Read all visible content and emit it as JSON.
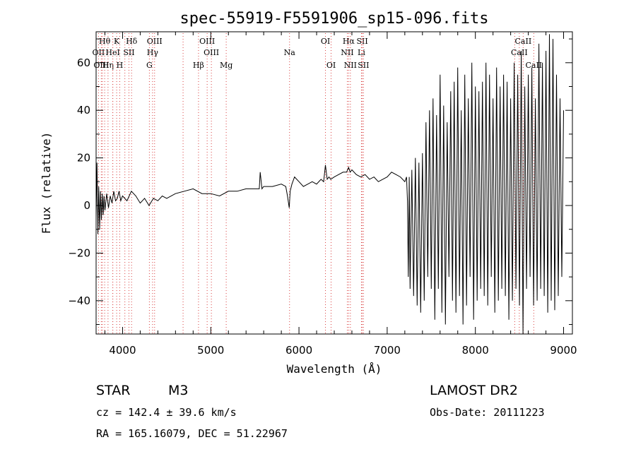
{
  "chart_data": {
    "type": "line",
    "title": "spec-55919-F5591906_sp15-096.fits",
    "xlabel": "Wavelength (Å)",
    "ylabel": "Flux (relative)",
    "xlim": [
      3700,
      9100
    ],
    "ylim": [
      -54,
      73
    ],
    "xticks": [
      4000,
      5000,
      6000,
      7000,
      8000,
      9000
    ],
    "yticks": [
      -40,
      -20,
      0,
      20,
      40,
      60
    ],
    "grid": false,
    "series": [
      {
        "x": [
          3700,
          3710,
          3720,
          3730,
          3740,
          3750,
          3760,
          3770,
          3780,
          3790,
          3800,
          3820,
          3840,
          3860,
          3880,
          3900,
          3920,
          3940,
          3960,
          3980,
          4000,
          4050,
          4100,
          4150,
          4200,
          4250,
          4300,
          4350,
          4400,
          4450,
          4500,
          4600,
          4700,
          4800,
          4900,
          5000,
          5100,
          5200,
          5300,
          5400,
          5500,
          5550,
          5560,
          5580,
          5600,
          5700,
          5800,
          5850,
          5870,
          5890,
          5900,
          5920,
          5950,
          6000,
          6050,
          6100,
          6150,
          6200,
          6250,
          6280,
          6300,
          6320,
          6340,
          6360,
          6400,
          6450,
          6500,
          6540,
          6563,
          6580,
          6600,
          6650,
          6700,
          6750,
          6800,
          6850,
          6900,
          6950,
          7000,
          7050,
          7100,
          7150,
          7200,
          7220,
          7230,
          7240,
          7250,
          7260,
          7280,
          7300,
          7320,
          7340,
          7360,
          7380,
          7400,
          7420,
          7440,
          7460,
          7480,
          7500,
          7520,
          7540,
          7560,
          7580,
          7600,
          7620,
          7640,
          7660,
          7680,
          7700,
          7720,
          7740,
          7760,
          7780,
          7800,
          7820,
          7840,
          7860,
          7880,
          7900,
          7920,
          7940,
          7960,
          7980,
          8000,
          8020,
          8040,
          8060,
          8080,
          8100,
          8120,
          8140,
          8160,
          8180,
          8200,
          8220,
          8240,
          8260,
          8280,
          8300,
          8320,
          8340,
          8360,
          8380,
          8400,
          8420,
          8440,
          8460,
          8480,
          8500,
          8520,
          8540,
          8560,
          8580,
          8600,
          8620,
          8640,
          8660,
          8680,
          8700,
          8720,
          8740,
          8760,
          8780,
          8800,
          8820,
          8840,
          8860,
          8880,
          8900,
          8920,
          8940,
          8960,
          8980,
          9000
        ],
        "y": [
          -5,
          18,
          -12,
          8,
          -10,
          6,
          -6,
          5,
          -4,
          4,
          -2,
          5,
          -1,
          4,
          1,
          6,
          2,
          3,
          6,
          2,
          4,
          2,
          6,
          4,
          1,
          3,
          0,
          3,
          2,
          4,
          3,
          5,
          6,
          7,
          5,
          5,
          4,
          6,
          6,
          7,
          7,
          7,
          14,
          7,
          8,
          8,
          9,
          8,
          4,
          -1,
          6,
          9,
          12,
          10,
          8,
          9,
          10,
          9,
          11,
          10,
          17,
          11,
          12,
          11,
          12,
          13,
          14,
          14,
          16,
          14,
          15,
          13,
          12,
          13,
          11,
          12,
          10,
          11,
          12,
          14,
          13,
          12,
          10,
          12,
          2,
          -30,
          12,
          -35,
          15,
          -38,
          20,
          -42,
          18,
          -45,
          22,
          -40,
          35,
          -30,
          40,
          -35,
          45,
          -48,
          38,
          -35,
          55,
          -45,
          42,
          -50,
          35,
          -30,
          48,
          -40,
          52,
          -45,
          58,
          -38,
          40,
          -50,
          55,
          -42,
          45,
          -30,
          60,
          -48,
          50,
          -40,
          48,
          -35,
          52,
          -38,
          60,
          -42,
          55,
          -30,
          45,
          -45,
          58,
          -40,
          50,
          -35,
          55,
          -38,
          52,
          -48,
          45,
          -40,
          60,
          -35,
          55,
          -42,
          65,
          -54,
          50,
          -35,
          55,
          -30,
          58,
          -42,
          45,
          -40,
          68,
          -35,
          60,
          -38,
          65,
          -45,
          72,
          -40,
          70,
          -44,
          55,
          -38,
          45,
          -30,
          40
        ]
      }
    ],
    "line_marks": [
      {
        "label": "Hθ",
        "w": 3797,
        "row": 1,
        "line": true
      },
      {
        "label": "K",
        "w": 3933,
        "row": 1,
        "line": true
      },
      {
        "label": "Hδ",
        "w": 4102,
        "row": 1,
        "line": true
      },
      {
        "label": "OIII",
        "w": 4363,
        "row": 1,
        "line": true
      },
      {
        "label": "OIII",
        "w": 4959,
        "row": 1,
        "line": true
      },
      {
        "label": "OI",
        "w": 6300,
        "row": 1,
        "line": true
      },
      {
        "label": "Hα",
        "w": 6563,
        "row": 1,
        "line": true
      },
      {
        "label": "SII",
        "w": 6717,
        "row": 1,
        "line": true
      },
      {
        "label": "CaII",
        "w": 8542,
        "row": 1,
        "line": true
      },
      {
        "label": "OII",
        "w": 3727,
        "row": 2,
        "line": true
      },
      {
        "label": "HeI",
        "w": 3889,
        "row": 2,
        "line": true
      },
      {
        "label": "SII",
        "w": 4072,
        "row": 2,
        "line": true
      },
      {
        "label": "Hγ",
        "w": 4340,
        "row": 2,
        "line": true
      },
      {
        "label": "OIII",
        "w": 5007,
        "row": 2,
        "line": true
      },
      {
        "label": "Na",
        "w": 5893,
        "row": 2,
        "line": true
      },
      {
        "label": "NII",
        "w": 6548,
        "row": 2,
        "line": true
      },
      {
        "label": "Li",
        "w": 6708,
        "row": 2,
        "line": true
      },
      {
        "label": "CaII",
        "w": 8498,
        "row": 2,
        "line": true
      },
      {
        "label": "OIII",
        "w": 3759,
        "row": 3,
        "line": true
      },
      {
        "label": "Hη",
        "w": 3835,
        "row": 3,
        "line": true
      },
      {
        "label": "H",
        "w": 3968,
        "row": 3,
        "line": true
      },
      {
        "label": "G",
        "w": 4304,
        "row": 3,
        "line": true
      },
      {
        "label": "Hβ",
        "w": 4861,
        "row": 3,
        "line": true
      },
      {
        "label": "Mg",
        "w": 5175,
        "row": 3,
        "line": true
      },
      {
        "label": "OI",
        "w": 6364,
        "row": 3,
        "line": true
      },
      {
        "label": "NII",
        "w": 6583,
        "row": 3,
        "line": true
      },
      {
        "label": "SII",
        "w": 6731,
        "row": 3,
        "line": true
      },
      {
        "label": "CaII",
        "w": 8662,
        "row": 3,
        "line": true
      },
      {
        "w": 3771,
        "line": true
      },
      {
        "w": 3889,
        "line": true
      },
      {
        "w": 4026,
        "line": true
      },
      {
        "w": 4686,
        "line": true
      },
      {
        "w": 8446,
        "line": true
      }
    ]
  },
  "info": {
    "obj_class": "STAR",
    "subclass": "M3",
    "survey": "LAMOST DR2",
    "cz": "cz = 142.4 ± 39.6 km/s",
    "obs_date": "Obs-Date: 20111223",
    "coords": "RA = 165.16079, DEC =  51.22967"
  }
}
